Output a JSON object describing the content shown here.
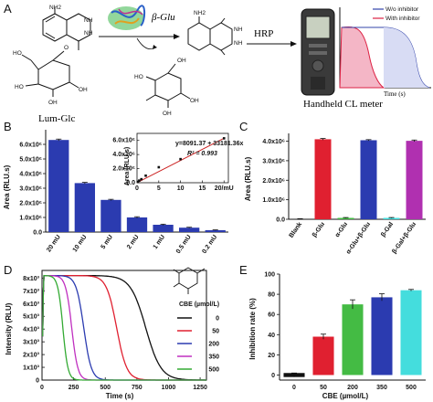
{
  "panels": [
    "A",
    "B",
    "C",
    "D",
    "E"
  ],
  "scheme": {
    "substrate_label": "Lum-Glc",
    "enzyme_label": "β-Glu",
    "oxidant_label": "HRP",
    "device_label": "Handheld CL meter",
    "ring_label_nh2": "NH2",
    "ring_label_nh": "NH",
    "ring_label_oh": "OH",
    "ring_label_ho": "HO",
    "ring_label_o": "O",
    "legend": [
      "W/o inhibitor",
      "With inhibitor"
    ],
    "time_label": "Time (s)",
    "colors": {
      "without": "#3344aa",
      "with": "#dd2244"
    }
  },
  "chart_data": [
    {
      "panel": "B",
      "type": "bar",
      "categories": [
        "20 mU",
        "10 mU",
        "5 mU",
        "2 mU",
        "1 mU",
        "0.5 mU",
        "0.2 mU"
      ],
      "values": [
        6300000.0,
        3350000.0,
        2200000.0,
        1000000.0,
        500000.0,
        300000.0,
        130000.0
      ],
      "errors": [
        60000.0,
        50000.0,
        40000.0,
        50000.0,
        40000.0,
        30000.0,
        20000.0
      ],
      "ylabel": "Area (RLU.s)",
      "ylim": [
        0,
        7000000.0
      ],
      "yticks": [
        "0.0",
        "1.0x10⁶",
        "2.0x10⁶",
        "3.0x10⁶",
        "4.0x10⁶",
        "5.0x10⁶",
        "6.0x10⁶"
      ],
      "color": "#2b3bb0",
      "inset": {
        "type": "scatter",
        "x": [
          0.2,
          0.5,
          1,
          2,
          5,
          10,
          20
        ],
        "y": [
          130000.0,
          300000.0,
          500000.0,
          1000000.0,
          2200000.0,
          3350000.0,
          6300000.0
        ],
        "fit": {
          "equation": "y=8091.37 + 33181.36x",
          "r2": "R² = 0.993",
          "slope": 33181.36,
          "intercept": 8091.37
        },
        "ylabel": "Area (RLU.s)",
        "xticks": [
          "0",
          "5",
          "10",
          "15",
          "20/mU"
        ],
        "yticks": [
          "0.0",
          "2.0x10⁶",
          "4.0x10⁶",
          "6.0x10⁶"
        ],
        "xlim": [
          0,
          21
        ],
        "ylim": [
          0,
          7000000.0
        ],
        "fit_color": "#cc2222"
      }
    },
    {
      "panel": "C",
      "type": "bar",
      "categories": [
        "Blank",
        "β-Glu",
        "α-Glu",
        "α-Glu+β-Glu",
        "β-Gal",
        "β-Gal+β-Glu"
      ],
      "values": [
        20000.0,
        4100000.0,
        70000.0,
        4050000.0,
        70000.0,
        4020000.0
      ],
      "errors": [
        10000.0,
        40000.0,
        20000.0,
        30000.0,
        20000.0,
        40000.0
      ],
      "colors": [
        "#111111",
        "#e02030",
        "#44bb44",
        "#2b3bb0",
        "#44dddd",
        "#b030b0"
      ],
      "ylabel": "Area (RLU.s)",
      "ylim": [
        0,
        4400000.0
      ],
      "yticks": [
        "0.0",
        "1.0x10⁶",
        "2.0x10⁶",
        "3.0x10⁶",
        "4.0x10⁶"
      ]
    },
    {
      "panel": "D",
      "type": "line",
      "xlabel": "Time (s)",
      "ylabel": "Intensity (RLU)",
      "xlim": [
        0,
        1300
      ],
      "ylim": [
        0,
        8600.0
      ],
      "xticks": [
        "0",
        "250",
        "500",
        "750",
        "1000",
        "1250"
      ],
      "yticks": [
        "0",
        "1x10³",
        "2x10³",
        "3x10³",
        "4x10³",
        "5x10³",
        "6x10³",
        "7x10³",
        "8x10³"
      ],
      "legend_title": "CBE (µmol/L)",
      "series": [
        {
          "name": "0",
          "color": "#111111",
          "half_time": 820,
          "width": 60
        },
        {
          "name": "50",
          "color": "#e02030",
          "half_time": 590,
          "width": 40
        },
        {
          "name": "200",
          "color": "#2b3bb0",
          "half_time": 330,
          "width": 30
        },
        {
          "name": "350",
          "color": "#c030c0",
          "half_time": 235,
          "width": 24
        },
        {
          "name": "500",
          "color": "#33aa33",
          "half_time": 165,
          "width": 20
        }
      ],
      "plateau": 8200.0
    },
    {
      "panel": "E",
      "type": "bar",
      "categories": [
        "0",
        "50",
        "200",
        "350",
        "500"
      ],
      "values": [
        0,
        38,
        70,
        77,
        84
      ],
      "errors": [
        2,
        2.5,
        4.5,
        3.5,
        0.8
      ],
      "colors": [
        "#111111",
        "#e02030",
        "#44bb44",
        "#2b3bb0",
        "#44dddd"
      ],
      "xlabel": "CBE (µmol/L)",
      "ylabel": "Inhibition rate (%)",
      "ylim": [
        -5,
        100
      ],
      "yticks": [
        "0",
        "20",
        "40",
        "60",
        "80",
        "100"
      ]
    }
  ]
}
